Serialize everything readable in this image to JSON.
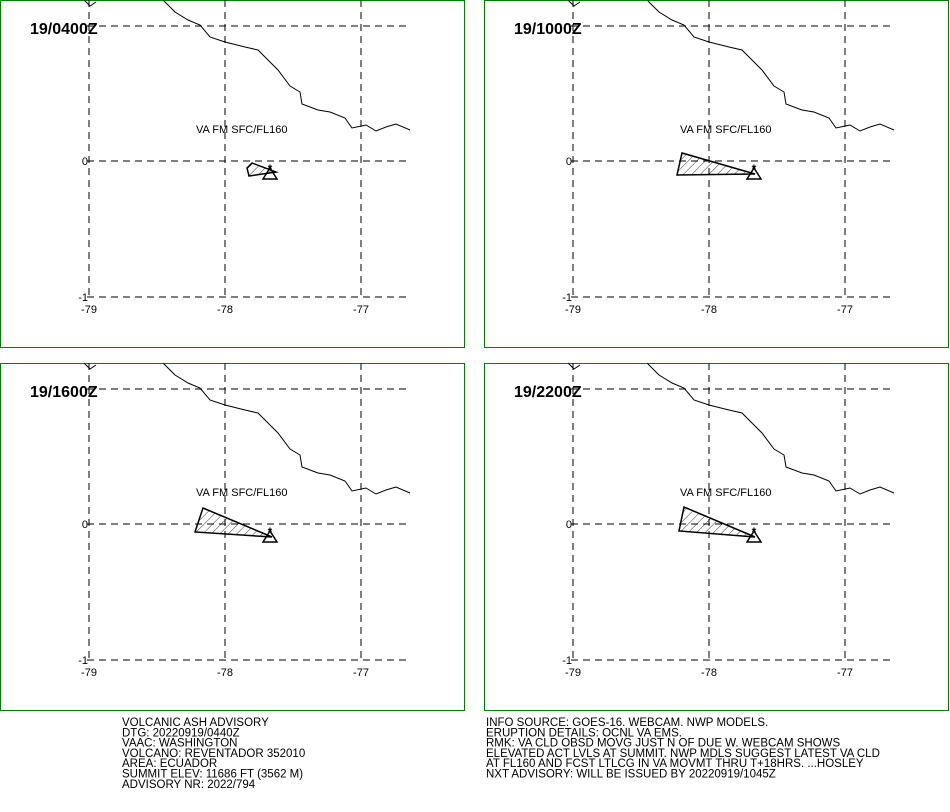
{
  "panels": [
    {
      "time": "19/0400Z",
      "label": "VA FM SFC/FL160"
    },
    {
      "time": "19/1000Z",
      "label": "VA FM SFC/FL160"
    },
    {
      "time": "19/1600Z",
      "label": "VA FM SFC/FL160"
    },
    {
      "time": "19/2200Z",
      "label": "VA FM SFC/FL160"
    }
  ],
  "axes": {
    "lon_labels": [
      "-79",
      "-78",
      "-77"
    ],
    "lat_labels": [
      "0",
      "-1"
    ]
  },
  "advisory": {
    "left": [
      "VOLCANIC ASH ADVISORY",
      "DTG: 20220919/0440Z",
      "VAAC: WASHINGTON",
      "VOLCANO: REVENTADOR 352010",
      "AREA: ECUADOR",
      "SUMMIT ELEV: 11686 FT (3562 M)",
      "ADVISORY NR: 2022/794"
    ],
    "right": [
      "INFO SOURCE: GOES-16. WEBCAM. NWP MODELS.",
      "ERUPTION DETAILS: OCNL VA EMS.",
      "RMK: VA CLD OBSD MOVG JUST N OF DUE W. WEBCAM SHOWS",
      "ELEVATED ACT LVLS AT SUMMIT. NWP MDLS SUGGEST LATEST VA CLD",
      "AT FL160 AND FCST LTLCG IN VA MOVMT THRU T+18HRS. ...HOSLEY",
      "NXT ADVISORY: WILL BE ISSUED BY 20220919/1045Z"
    ]
  }
}
